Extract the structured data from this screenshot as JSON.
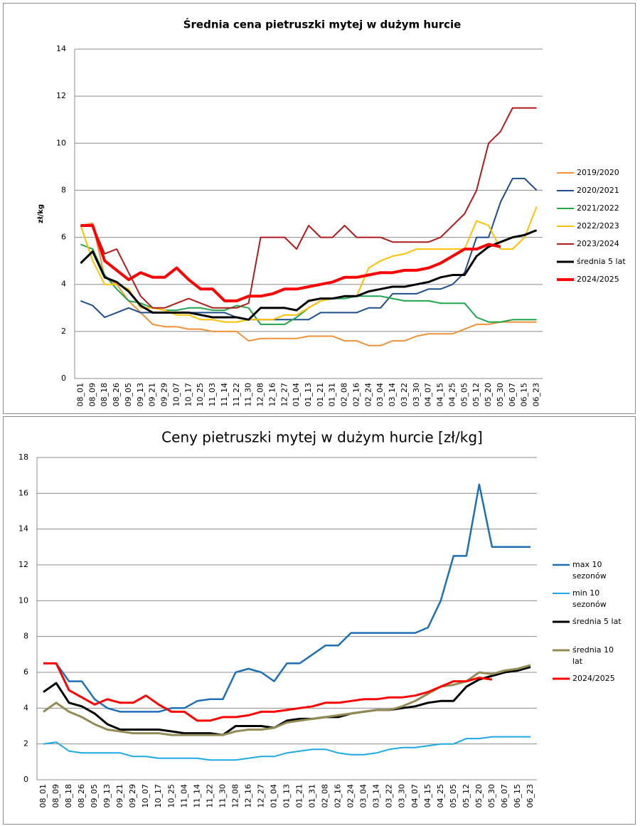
{
  "chart_data": [
    {
      "type": "line",
      "title": "Średnia cena pietruszki mytej w dużym hurcie",
      "y_label": "zł/kg",
      "categories": [
        "08_01",
        "08_09",
        "08_18",
        "08_26",
        "09_05",
        "09_13",
        "09_21",
        "09_29",
        "10_07",
        "10_17",
        "10_25",
        "11_03",
        "11_14",
        "11_22",
        "11_30",
        "12_08",
        "12_16",
        "12_27",
        "01_04",
        "01_13",
        "01_21",
        "01_31",
        "02_08",
        "02_16",
        "02_24",
        "03_04",
        "03_14",
        "03_22",
        "03_30",
        "04_07",
        "04_15",
        "04_25",
        "05_05",
        "05_12",
        "05_20",
        "05_30",
        "06_07",
        "06_15",
        "06_23"
      ],
      "ylim": [
        0,
        14
      ],
      "yticks": [
        0,
        2,
        4,
        6,
        8,
        10,
        12,
        14
      ],
      "grid": true,
      "legend": "right",
      "series": [
        {
          "name": "2019/2020",
          "color": "#f0913a",
          "values": [
            6.5,
            6.6,
            4.3,
            4.0,
            3.3,
            2.8,
            2.3,
            2.2,
            2.2,
            2.1,
            2.1,
            2.0,
            2.0,
            2.0,
            1.6,
            1.7,
            1.7,
            1.7,
            1.7,
            1.8,
            1.8,
            1.8,
            1.6,
            1.6,
            1.4,
            1.4,
            1.6,
            1.6,
            1.8,
            1.9,
            1.9,
            1.9,
            2.1,
            2.3,
            2.3,
            2.4,
            2.4,
            2.4,
            2.4
          ]
        },
        {
          "name": "2020/2021",
          "color": "#1f4e8c",
          "values": [
            3.3,
            3.1,
            2.6,
            2.8,
            3.0,
            2.8,
            2.8,
            2.8,
            2.8,
            2.8,
            2.8,
            2.8,
            2.8,
            2.6,
            2.5,
            2.5,
            2.5,
            2.5,
            2.5,
            2.5,
            2.8,
            2.8,
            2.8,
            2.8,
            3.0,
            3.0,
            3.6,
            3.6,
            3.6,
            3.8,
            3.8,
            4.0,
            4.5,
            6.0,
            6.0,
            7.5,
            8.5,
            8.5,
            8.0
          ]
        },
        {
          "name": "2021/2022",
          "color": "#1fa64a",
          "values": [
            5.7,
            5.5,
            4.4,
            3.8,
            3.3,
            3.2,
            3.0,
            2.9,
            2.9,
            3.0,
            3.0,
            2.9,
            2.9,
            3.1,
            3.0,
            2.3,
            2.3,
            2.3,
            2.6,
            3.0,
            3.3,
            3.4,
            3.4,
            3.5,
            3.5,
            3.5,
            3.4,
            3.3,
            3.3,
            3.3,
            3.2,
            3.2,
            3.2,
            2.6,
            2.4,
            2.4,
            2.5,
            2.5,
            2.5
          ]
        },
        {
          "name": "2022/2023",
          "color": "#ffc000",
          "values": [
            6.5,
            5.0,
            4.0,
            4.0,
            3.8,
            3.0,
            3.0,
            2.9,
            2.7,
            2.7,
            2.5,
            2.5,
            2.4,
            2.4,
            2.5,
            2.5,
            2.5,
            2.7,
            2.7,
            3.0,
            3.3,
            3.4,
            3.5,
            3.5,
            4.7,
            5.0,
            5.2,
            5.3,
            5.5,
            5.5,
            5.5,
            5.5,
            5.5,
            6.7,
            6.5,
            5.5,
            5.5,
            6.0,
            7.3
          ]
        },
        {
          "name": "2023/2024",
          "color": "#b01c1c",
          "values": [
            6.5,
            6.5,
            5.3,
            5.5,
            4.5,
            3.5,
            3.0,
            3.0,
            3.2,
            3.4,
            3.2,
            3.0,
            3.0,
            3.0,
            3.2,
            6.0,
            6.0,
            6.0,
            5.5,
            6.5,
            6.0,
            6.0,
            6.5,
            6.0,
            6.0,
            6.0,
            5.8,
            5.8,
            5.8,
            5.8,
            6.0,
            6.5,
            7.0,
            8.0,
            10.0,
            10.5,
            11.5,
            11.5,
            11.5
          ]
        },
        {
          "name": "średnia 5 lat",
          "color": "#000000",
          "values": [
            4.9,
            5.4,
            4.3,
            4.1,
            3.7,
            3.1,
            2.8,
            2.8,
            2.8,
            2.8,
            2.7,
            2.6,
            2.6,
            2.6,
            2.5,
            3.0,
            3.0,
            3.0,
            2.9,
            3.3,
            3.4,
            3.4,
            3.5,
            3.5,
            3.7,
            3.8,
            3.9,
            3.9,
            4.0,
            4.1,
            4.3,
            4.4,
            4.4,
            5.2,
            5.6,
            5.8,
            6.0,
            6.1,
            6.3
          ]
        },
        {
          "name": "2024/2025",
          "color": "#ff0000",
          "values": [
            6.5,
            6.5,
            5.0,
            4.6,
            4.2,
            4.5,
            4.3,
            4.3,
            4.7,
            4.2,
            3.8,
            3.8,
            3.3,
            3.3,
            3.5,
            3.5,
            3.6,
            3.8,
            3.8,
            3.9,
            4.0,
            4.1,
            4.3,
            4.3,
            4.4,
            4.5,
            4.5,
            4.6,
            4.6,
            4.7,
            4.9,
            5.2,
            5.5,
            5.5,
            5.7,
            5.6,
            null,
            null,
            null
          ]
        }
      ]
    },
    {
      "type": "line",
      "title": "Ceny pietruszki mytej w dużym hurcie [zł/kg]",
      "categories": [
        "08_01",
        "08_09",
        "08_18",
        "08_26",
        "09_05",
        "09_13",
        "09_21",
        "09_29",
        "10_07",
        "10_17",
        "10_25",
        "11_04",
        "11_14",
        "11_22",
        "11_30",
        "12_08",
        "12_16",
        "12_27",
        "01_04",
        "01_13",
        "01_21",
        "01_31",
        "02_08",
        "02_16",
        "02_24",
        "03_04",
        "03_14",
        "03_22",
        "03_30",
        "04_07",
        "04_15",
        "04_25",
        "05_05",
        "05_12",
        "05_20",
        "05_30",
        "06_07",
        "06_15",
        "06_23"
      ],
      "ylim": [
        0,
        18
      ],
      "yticks": [
        0,
        2,
        4,
        6,
        8,
        10,
        12,
        14,
        16,
        18
      ],
      "grid": true,
      "legend": "right",
      "series": [
        {
          "name": "max 10 sezonów",
          "color": "#1f6fb5",
          "values": [
            6.5,
            6.5,
            5.5,
            5.5,
            4.5,
            4.0,
            3.8,
            3.8,
            3.8,
            3.8,
            4.0,
            4.0,
            4.4,
            4.5,
            4.5,
            6.0,
            6.2,
            6.0,
            5.5,
            6.5,
            6.5,
            7.0,
            7.5,
            7.5,
            8.2,
            8.2,
            8.2,
            8.2,
            8.2,
            8.2,
            8.5,
            10.0,
            12.5,
            12.5,
            16.5,
            13.0,
            13.0,
            13.0,
            13.0
          ]
        },
        {
          "name": "min 10 sezonów",
          "color": "#1fa9e1",
          "values": [
            2.0,
            2.1,
            1.6,
            1.5,
            1.5,
            1.5,
            1.5,
            1.3,
            1.3,
            1.2,
            1.2,
            1.2,
            1.2,
            1.1,
            1.1,
            1.1,
            1.2,
            1.3,
            1.3,
            1.5,
            1.6,
            1.7,
            1.7,
            1.5,
            1.4,
            1.4,
            1.5,
            1.7,
            1.8,
            1.8,
            1.9,
            2.0,
            2.0,
            2.3,
            2.3,
            2.4,
            2.4,
            2.4,
            2.4
          ]
        },
        {
          "name": "średnia 5 lat",
          "color": "#000000",
          "values": [
            4.9,
            5.4,
            4.3,
            4.1,
            3.7,
            3.1,
            2.8,
            2.8,
            2.8,
            2.8,
            2.7,
            2.6,
            2.6,
            2.6,
            2.5,
            3.0,
            3.0,
            3.0,
            2.9,
            3.3,
            3.4,
            3.4,
            3.5,
            3.5,
            3.7,
            3.8,
            3.9,
            3.9,
            4.0,
            4.1,
            4.3,
            4.4,
            4.4,
            5.2,
            5.6,
            5.8,
            6.0,
            6.1,
            6.3
          ]
        },
        {
          "name": "średnia 10 lat",
          "color": "#948a54",
          "values": [
            3.8,
            4.3,
            3.8,
            3.5,
            3.1,
            2.8,
            2.7,
            2.6,
            2.6,
            2.6,
            2.5,
            2.5,
            2.5,
            2.5,
            2.5,
            2.7,
            2.8,
            2.8,
            2.9,
            3.2,
            3.3,
            3.4,
            3.5,
            3.6,
            3.7,
            3.8,
            3.9,
            3.9,
            4.1,
            4.4,
            4.8,
            5.2,
            5.3,
            5.5,
            6.0,
            5.9,
            6.1,
            6.2,
            6.4
          ]
        },
        {
          "name": "2024/2025",
          "color": "#ff0000",
          "values": [
            6.5,
            6.5,
            5.0,
            4.6,
            4.2,
            4.5,
            4.3,
            4.3,
            4.7,
            4.2,
            3.8,
            3.8,
            3.3,
            3.3,
            3.5,
            3.5,
            3.6,
            3.8,
            3.8,
            3.9,
            4.0,
            4.1,
            4.3,
            4.3,
            4.4,
            4.5,
            4.5,
            4.6,
            4.6,
            4.7,
            4.9,
            5.2,
            5.5,
            5.5,
            5.7,
            5.6,
            null,
            null,
            null
          ]
        }
      ]
    }
  ]
}
